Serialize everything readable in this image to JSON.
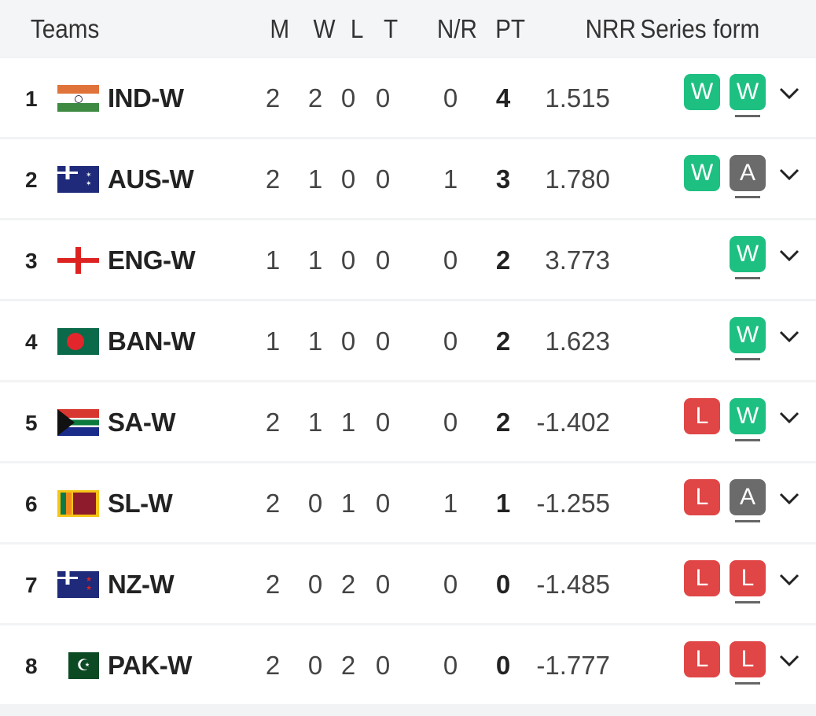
{
  "header": {
    "teams": "Teams",
    "m": "M",
    "w": "W",
    "l": "L",
    "t": "T",
    "nr": "N/R",
    "pt": "PT",
    "nrr": "NRR",
    "form": "Series form"
  },
  "colors": {
    "W": "#1ec082",
    "L": "#e04646",
    "A": "#6b6b6b"
  },
  "rows": [
    {
      "rank": "1",
      "team": "IND-W",
      "flag": "india-flag",
      "m": "2",
      "w": "2",
      "l": "0",
      "t": "0",
      "nr": "0",
      "pt": "4",
      "nrr": "1.515",
      "form": [
        "W",
        "W"
      ]
    },
    {
      "rank": "2",
      "team": "AUS-W",
      "flag": "australia-flag",
      "m": "2",
      "w": "1",
      "l": "0",
      "t": "0",
      "nr": "1",
      "pt": "3",
      "nrr": "1.780",
      "form": [
        "W",
        "A"
      ]
    },
    {
      "rank": "3",
      "team": "ENG-W",
      "flag": "england-flag",
      "m": "1",
      "w": "1",
      "l": "0",
      "t": "0",
      "nr": "0",
      "pt": "2",
      "nrr": "3.773",
      "form": [
        "W"
      ]
    },
    {
      "rank": "4",
      "team": "BAN-W",
      "flag": "bangladesh-flag",
      "m": "1",
      "w": "1",
      "l": "0",
      "t": "0",
      "nr": "0",
      "pt": "2",
      "nrr": "1.623",
      "form": [
        "W"
      ]
    },
    {
      "rank": "5",
      "team": "SA-W",
      "flag": "south-africa-flag",
      "m": "2",
      "w": "1",
      "l": "1",
      "t": "0",
      "nr": "0",
      "pt": "2",
      "nrr": "-1.402",
      "form": [
        "L",
        "W"
      ]
    },
    {
      "rank": "6",
      "team": "SL-W",
      "flag": "sri-lanka-flag",
      "m": "2",
      "w": "0",
      "l": "1",
      "t": "0",
      "nr": "1",
      "pt": "1",
      "nrr": "-1.255",
      "form": [
        "L",
        "A"
      ]
    },
    {
      "rank": "7",
      "team": "NZ-W",
      "flag": "new-zealand-flag",
      "m": "2",
      "w": "0",
      "l": "2",
      "t": "0",
      "nr": "0",
      "pt": "0",
      "nrr": "-1.485",
      "form": [
        "L",
        "L"
      ]
    },
    {
      "rank": "8",
      "team": "PAK-W",
      "flag": "pakistan-flag",
      "m": "2",
      "w": "0",
      "l": "2",
      "t": "0",
      "nr": "0",
      "pt": "0",
      "nrr": "-1.777",
      "form": [
        "L",
        "L"
      ]
    }
  ]
}
